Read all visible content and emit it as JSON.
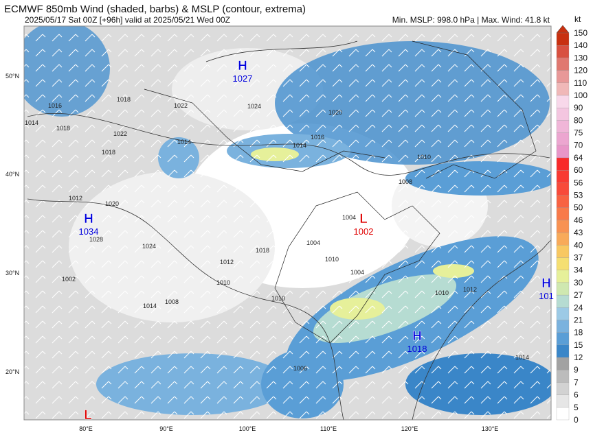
{
  "header": {
    "title": "ECMWF 850mb Wind (shaded, barbs) & MSLP (contour, extrema)",
    "subtitle": "2025/05/17 Sat 00Z [+96h] valid at 2025/05/21 Wed 00Z",
    "stats": "Min. MSLP: 998.0 hPa | Max. Wind: 41.8 kt"
  },
  "colorbar": {
    "unit": "kt",
    "levels": [
      0,
      5,
      6,
      7,
      9,
      12,
      15,
      18,
      21,
      24,
      27,
      30,
      34,
      37,
      40,
      43,
      46,
      50,
      53,
      56,
      60,
      64,
      70,
      75,
      80,
      90,
      100,
      110,
      120,
      130,
      140,
      150
    ],
    "colors": [
      "#ffffff",
      "#e6e6e6",
      "#d2d2d2",
      "#bcbcbc",
      "#a2a2a2",
      "#3a86c8",
      "#5a9ed6",
      "#7ab2de",
      "#9ccae6",
      "#b6dcd2",
      "#cfe8b0",
      "#e6f09a",
      "#f5df72",
      "#f8c862",
      "#f8aa5a",
      "#f89252",
      "#f87a4a",
      "#f86242",
      "#f84a3a",
      "#f83a32",
      "#f82a2a",
      "#e896c8",
      "#eca6d0",
      "#f0b6d8",
      "#f4c6e0",
      "#f8d8ea",
      "#f0b8b8",
      "#e89898",
      "#e07870",
      "#d85040",
      "#c83010"
    ]
  },
  "lat_labels": [
    "50°N",
    "40°N",
    "30°N",
    "20°N"
  ],
  "lon_labels": [
    "80°E",
    "90°E",
    "100°E",
    "110°E",
    "120°E",
    "130°E"
  ],
  "pressure_centers": [
    {
      "letter": "H",
      "value": "1027"
    },
    {
      "letter": "H",
      "value": "1034"
    },
    {
      "letter": "L",
      "value": "1002"
    },
    {
      "letter": "H",
      "value": "1018"
    },
    {
      "letter": "H",
      "value": "101"
    },
    {
      "letter": "L"
    }
  ],
  "contour_labels": [
    "1016",
    "1018",
    "1022",
    "1024",
    "1020",
    "1016",
    "1014",
    "1014",
    "1018",
    "1022",
    "1018",
    "1014",
    "1012",
    "1020",
    "1028",
    "1024",
    "1018",
    "1004",
    "1004",
    "1010",
    "1012",
    "1010",
    "1008",
    "1014",
    "1002",
    "1008",
    "1010",
    "1004",
    "1006",
    "1010",
    "1010",
    "1012",
    "1014"
  ]
}
